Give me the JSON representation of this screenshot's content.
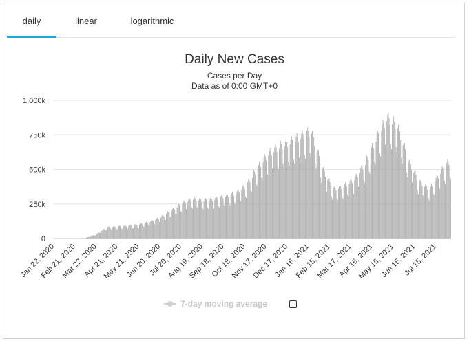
{
  "tabs": [
    {
      "label": "daily",
      "active": true
    },
    {
      "label": "linear",
      "active": false
    },
    {
      "label": "logarithmic",
      "active": false
    }
  ],
  "colors": {
    "accent": "#1fa7d6",
    "bar": "#a6a6a6",
    "grid": "#e6e6e6"
  },
  "legend": {
    "label": "7-day moving average",
    "checked": false
  },
  "chart_data": {
    "type": "bar",
    "title": "Daily New Cases",
    "subtitle": "Cases per Day",
    "subtitle2": "Data as of 0:00 GMT+0",
    "y_ticks": [
      "1,000k",
      "750k",
      "500k",
      "250k",
      "0"
    ],
    "y_tick_values": [
      1000000,
      750000,
      500000,
      250000,
      0
    ],
    "ylim": [
      0,
      1000000
    ],
    "x_ticks": [
      "Jan 22, 2020",
      "Feb 21, 2020",
      "Mar 22, 2020",
      "Apr 21, 2020",
      "May 21, 2020",
      "Jun 20, 2020",
      "Jul 20, 2020",
      "Aug 19, 2020",
      "Sep 18, 2020",
      "Oct 18, 2020",
      "Nov 17, 2020",
      "Dec 17, 2020",
      "Jan 16, 2021",
      "Feb 15, 2021",
      "Mar 17, 2021",
      "Apr 16, 2021",
      "May 16, 2021",
      "Jun 15, 2021",
      "Jul 15, 2021"
    ],
    "grid": true,
    "x": [
      "Jan 22, 2020",
      "Feb 5, 2020",
      "Feb 21, 2020",
      "Mar 7, 2020",
      "Mar 22, 2020",
      "Apr 6, 2020",
      "Apr 21, 2020",
      "May 6, 2020",
      "May 21, 2020",
      "Jun 5, 2020",
      "Jun 20, 2020",
      "Jul 5, 2020",
      "Jul 20, 2020",
      "Aug 4, 2020",
      "Aug 19, 2020",
      "Sep 3, 2020",
      "Sep 18, 2020",
      "Oct 3, 2020",
      "Oct 18, 2020",
      "Nov 2, 2020",
      "Nov 17, 2020",
      "Dec 2, 2020",
      "Dec 17, 2020",
      "Jan 1, 2021",
      "Jan 16, 2021",
      "Jan 31, 2021",
      "Feb 15, 2021",
      "Mar 2, 2021",
      "Mar 17, 2021",
      "Apr 1, 2021",
      "Apr 16, 2021",
      "May 1, 2021",
      "May 16, 2021",
      "May 31, 2021",
      "Jun 15, 2021",
      "Jun 30, 2021",
      "Jul 15, 2021",
      "Jul 25, 2021"
    ],
    "values": [
      1000,
      2000,
      2000,
      4000,
      30000,
      80000,
      85000,
      90000,
      100000,
      120000,
      150000,
      200000,
      250000,
      280000,
      270000,
      280000,
      300000,
      320000,
      380000,
      500000,
      600000,
      650000,
      680000,
      720000,
      760000,
      500000,
      350000,
      370000,
      420000,
      530000,
      700000,
      850000,
      800000,
      550000,
      400000,
      350000,
      470000,
      560000
    ]
  }
}
